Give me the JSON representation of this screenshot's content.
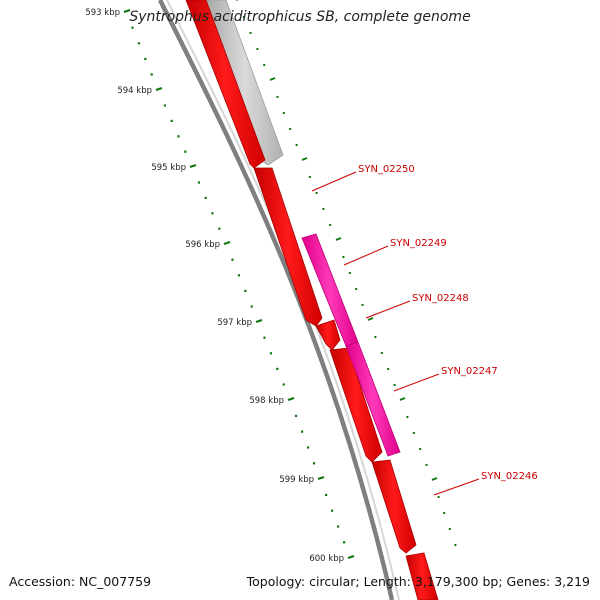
{
  "title": "Syntrophus aciditrophicus SB, complete genome",
  "footer": {
    "accession": "Accession: NC_007759",
    "topology": "Topology: circular; Length: 3,179,300 bp; Genes: 3,219"
  },
  "colors": {
    "backbone": "#7f7f7f",
    "forward_gene": "#ff0000",
    "forward_gene_dark": "#c80000",
    "reverse_gene": "#ff1fad",
    "other_gene": "#c9c9c9",
    "label": "#cc0000",
    "tick": "#117711"
  },
  "ticks": [
    {
      "kbp": 593,
      "label": "593 kbp"
    },
    {
      "kbp": 594,
      "label": "594 kbp"
    },
    {
      "kbp": 595,
      "label": "595 kbp"
    },
    {
      "kbp": 596,
      "label": "596 kbp"
    },
    {
      "kbp": 597,
      "label": "597 kbp"
    },
    {
      "kbp": 598,
      "label": "598 kbp"
    },
    {
      "kbp": 599,
      "label": "599 kbp"
    },
    {
      "kbp": 600,
      "label": "600 kbp"
    }
  ],
  "genes": [
    {
      "id": "SYN_02250",
      "label": "SYN_02250"
    },
    {
      "id": "SYN_02249",
      "label": "SYN_02249"
    },
    {
      "id": "SYN_02248",
      "label": "SYN_02248"
    },
    {
      "id": "SYN_02247",
      "label": "SYN_02247"
    },
    {
      "id": "SYN_02246",
      "label": "SYN_02246"
    }
  ]
}
